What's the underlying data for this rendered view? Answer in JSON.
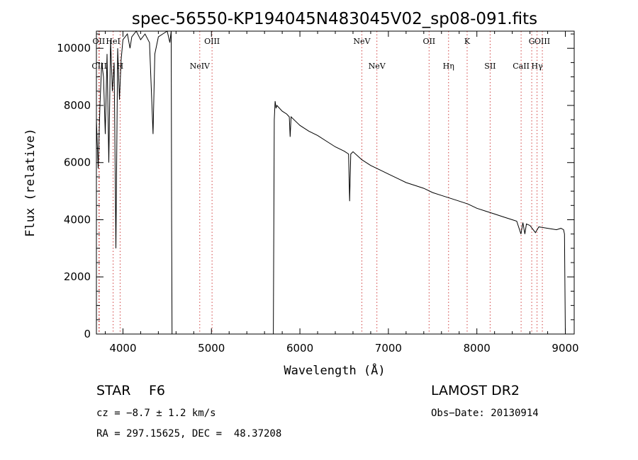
{
  "chart_data": {
    "type": "line",
    "title": "spec-56550-KP194045N483045V02_sp08-091.fits",
    "xlabel": "Wavelength (Å)",
    "ylabel": "Flux (relative)",
    "xlim": [
      3700,
      9100
    ],
    "ylim": [
      0,
      10600
    ],
    "x_ticks": [
      4000,
      5000,
      6000,
      7000,
      8000,
      9000
    ],
    "y_ticks": [
      0,
      2000,
      4000,
      6000,
      8000,
      10000
    ],
    "spectral_lines": [
      {
        "label": "OII",
        "wavelength": 3727,
        "row": "upper"
      },
      {
        "label": "CIII",
        "wavelength": 3733,
        "row": "lower"
      },
      {
        "label": "HeI",
        "wavelength": 3889,
        "row": "upper"
      },
      {
        "label": "H",
        "wavelength": 3968,
        "row": "lower"
      },
      {
        "label": "OIII",
        "wavelength": 5007,
        "row": "upper"
      },
      {
        "label": "NeIV",
        "wavelength": 4868,
        "row": "lower"
      },
      {
        "label": "NeV",
        "wavelength": 6700,
        "row": "upper"
      },
      {
        "label": "NeV",
        "wavelength": 6870,
        "row": "lower"
      },
      {
        "label": "OII",
        "wavelength": 7460,
        "row": "upper"
      },
      {
        "label": "Hη",
        "wavelength": 7680,
        "row": "lower"
      },
      {
        "label": "K",
        "wavelength": 7890,
        "row": "upper"
      },
      {
        "label": "SII",
        "wavelength": 8150,
        "row": "lower"
      },
      {
        "label": "G",
        "wavelength": 8620,
        "row": "upper"
      },
      {
        "label": "CaII",
        "wavelength": 8500,
        "row": "lower"
      },
      {
        "label": "Hγ",
        "wavelength": 8680,
        "row": "lower"
      },
      {
        "label": "OIII",
        "wavelength": 8740,
        "row": "upper"
      }
    ],
    "series": [
      {
        "x": [
          3700,
          3720,
          3740,
          3760,
          3780,
          3800,
          3820,
          3840,
          3860,
          3880,
          3900,
          3920,
          3940,
          3960,
          3980,
          4000,
          4050,
          4080,
          4100,
          4150,
          4200,
          4250,
          4300,
          4340,
          4360,
          4400,
          4450,
          4500,
          4530,
          4545,
          4550,
          4555,
          4560,
          4600,
          5000,
          5500,
          5700,
          5710,
          5720,
          5730,
          5740,
          5800,
          5850,
          5880,
          5890,
          5900,
          5950,
          6000,
          6100,
          6200,
          6300,
          6400,
          6500,
          6550,
          6562,
          6575,
          6600,
          6700,
          6800,
          6900,
          7000,
          7100,
          7200,
          7300,
          7400,
          7500,
          7600,
          7700,
          7800,
          7900,
          8000,
          8100,
          8200,
          8300,
          8400,
          8450,
          8498,
          8520,
          8542,
          8560,
          8600,
          8662,
          8700,
          8800,
          8900,
          8950,
          8980,
          8990,
          9000
        ],
        "y": [
          7500,
          5800,
          8000,
          9500,
          9000,
          7000,
          9800,
          6000,
          10300,
          8500,
          9500,
          3000,
          10000,
          8200,
          9600,
          10300,
          10500,
          10000,
          10400,
          10600,
          10300,
          10500,
          10200,
          7000,
          9800,
          10400,
          10500,
          10600,
          10200,
          10600,
          4000,
          0,
          0,
          0,
          0,
          0,
          0,
          7500,
          8150,
          7900,
          8000,
          7800,
          7700,
          7600,
          6900,
          7600,
          7450,
          7300,
          7100,
          6950,
          6750,
          6550,
          6400,
          6300,
          4650,
          6300,
          6380,
          6100,
          5900,
          5750,
          5600,
          5450,
          5300,
          5200,
          5100,
          4950,
          4850,
          4750,
          4650,
          4550,
          4400,
          4300,
          4200,
          4100,
          4000,
          3950,
          3500,
          3900,
          3500,
          3850,
          3800,
          3550,
          3750,
          3700,
          3650,
          3700,
          3650,
          3500,
          0
        ]
      }
    ],
    "grid": false,
    "legend": "none"
  },
  "footer": {
    "class_label": "STAR",
    "subclass": "F6",
    "survey": "LAMOST DR2",
    "cz": "cz = −8.7 ± 1.2 km/s",
    "obs_date": "Obs−Date: 20130914",
    "coords": "RA = 297.15625, DEC =  48.37208"
  }
}
